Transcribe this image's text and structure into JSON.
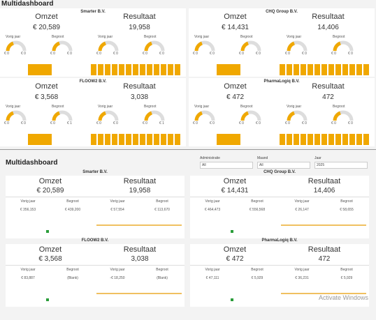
{
  "top": {
    "title": "Multidashboard",
    "panels": [
      {
        "name": "Smarter B.V.",
        "omzet_label": "Omzet",
        "omzet": "€ 20,589",
        "resultaat_label": "Resultaat",
        "resultaat": "19,958",
        "gauges": [
          {
            "label": "Vorig jaar",
            "min": "€ 0",
            "max": "€ 0"
          },
          {
            "label": "Begroot",
            "min": "€ 0",
            "max": "€ 0"
          },
          {
            "label": "Vorig jaar",
            "min": "€ 0",
            "max": "€ 0"
          },
          {
            "label": "Begroot",
            "min": "€ 0",
            "max": "€ 0"
          }
        ]
      },
      {
        "name": "CHQ Group B.V.",
        "omzet_label": "Omzet",
        "omzet": "€ 14,431",
        "resultaat_label": "Resultaat",
        "resultaat": "14,406",
        "gauges": [
          {
            "label": "Vorig jaar",
            "min": "€ 0",
            "max": "€ 0"
          },
          {
            "label": "Begroot",
            "min": "€ 0",
            "max": "€ 0"
          },
          {
            "label": "Vorig jaar",
            "min": "€ 0",
            "max": "€ 0"
          },
          {
            "label": "Begroot",
            "min": "€ 0",
            "max": "€ 0"
          }
        ]
      },
      {
        "name": "FLOOW2 B.V.",
        "omzet_label": "Omzet",
        "omzet": "€ 3,568",
        "resultaat_label": "Resultaat",
        "resultaat": "3,038",
        "gauges": [
          {
            "label": "Vorig jaar",
            "min": "€ 0",
            "max": "€ 0"
          },
          {
            "label": "Begroot",
            "min": "€ 0",
            "max": "€ 1"
          },
          {
            "label": "Vorig jaar",
            "min": "€ 0",
            "max": "€ 0"
          },
          {
            "label": "Begroot",
            "min": "€ 0",
            "max": "€ 1"
          }
        ]
      },
      {
        "name": "PharmaLogiq B.V.",
        "omzet_label": "Omzet",
        "omzet": "€ 472",
        "resultaat_label": "Resultaat",
        "resultaat": "472",
        "gauges": [
          {
            "label": "Vorig jaar",
            "min": "€ 0",
            "max": "€ 0"
          },
          {
            "label": "Begroot",
            "min": "€ 0",
            "max": "€ 0"
          },
          {
            "label": "Vorig jaar",
            "min": "€ 0",
            "max": "€ 0"
          },
          {
            "label": "Begroot",
            "min": "€ 0",
            "max": "€ 0"
          }
        ]
      }
    ]
  },
  "bottom": {
    "title": "Multidashboard",
    "filters": [
      {
        "label": "Administratie",
        "value": "All"
      },
      {
        "label": "Maand",
        "value": "All"
      },
      {
        "label": "Jaar",
        "value": "2025"
      }
    ],
    "panels": [
      {
        "name": "Smarter B.V.",
        "omzet_label": "Omzet",
        "omzet": "€ 20,589",
        "resultaat_label": "Resultaat",
        "resultaat": "19,958",
        "subs": [
          {
            "label": "Vorig jaar",
            "value": "€ 356,153"
          },
          {
            "label": "Begroot",
            "value": "€ 439,200"
          },
          {
            "label": "Vorig jaar",
            "value": "€ 57,554"
          },
          {
            "label": "Begroot",
            "value": "€ 113,670"
          }
        ]
      },
      {
        "name": "CHQ Group B.V.",
        "omzet_label": "Omzet",
        "omzet": "€ 14,431",
        "resultaat_label": "Resultaat",
        "resultaat": "14,406",
        "subs": [
          {
            "label": "Vorig jaar",
            "value": "€ 464,473"
          },
          {
            "label": "Begroot",
            "value": "€ 556,568"
          },
          {
            "label": "Vorig jaar",
            "value": "€ 26,147"
          },
          {
            "label": "Begroot",
            "value": "€ 58,655"
          }
        ]
      },
      {
        "name": "FLOOW2 B.V.",
        "omzet_label": "Omzet",
        "omzet": "€ 3,568",
        "resultaat_label": "Resultaat",
        "resultaat": "3,038",
        "subs": [
          {
            "label": "Vorig jaar",
            "value": "€ 83,887"
          },
          {
            "label": "Begroot",
            "value": "(Blank)"
          },
          {
            "label": "Vorig jaar",
            "value": "-€ 18,250"
          },
          {
            "label": "Begroot",
            "value": "(Blank)"
          }
        ]
      },
      {
        "name": "PharmaLogiq B.V.",
        "omzet_label": "Omzet",
        "omzet": "€ 472",
        "resultaat_label": "Resultaat",
        "resultaat": "472",
        "subs": [
          {
            "label": "Vorig jaar",
            "value": "€ 47,111"
          },
          {
            "label": "Begroot",
            "value": "€ 5,929"
          },
          {
            "label": "Vorig jaar",
            "value": "€ 36,231"
          },
          {
            "label": "Begroot",
            "value": "€ 5,929"
          }
        ]
      }
    ],
    "notice": "Activate Windows"
  }
}
